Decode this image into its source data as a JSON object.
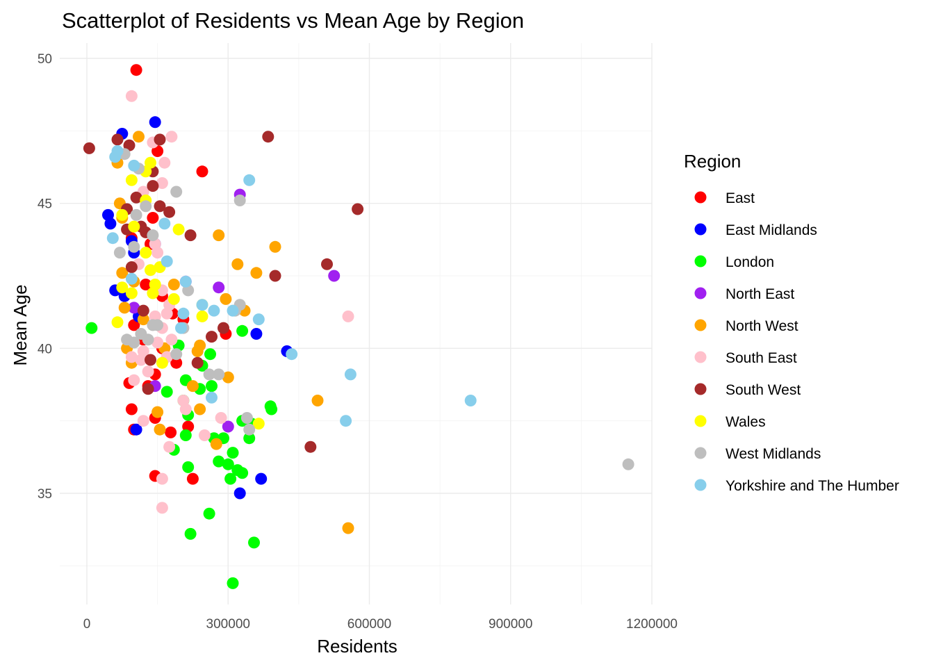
{
  "chart_data": {
    "type": "scatter",
    "title": "Scatterplot of Residents vs Mean Age by Region",
    "xlabel": "Residents",
    "ylabel": "Mean Age",
    "xlim": [
      -20000,
      1200000
    ],
    "ylim": [
      31.4,
      50.6
    ],
    "x_ticks": [
      0,
      300000,
      600000,
      900000,
      1200000
    ],
    "x_tick_labels": [
      "0",
      "300000",
      "600000",
      "900000",
      "1200000"
    ],
    "y_ticks": [
      35,
      40,
      45,
      50
    ],
    "y_tick_labels": [
      "35",
      "40",
      "45",
      "50"
    ],
    "grid": true,
    "legend_title": "Region",
    "legend_position": "right",
    "series": [
      {
        "name": "East",
        "color": "#FF0000",
        "points": [
          [
            105000,
            49.6
          ],
          [
            245000,
            46.1
          ],
          [
            150000,
            46.8
          ],
          [
            140000,
            44.5
          ],
          [
            135000,
            43.6
          ],
          [
            95000,
            43.8
          ],
          [
            125000,
            42.2
          ],
          [
            160000,
            41.8
          ],
          [
            182000,
            41.2
          ],
          [
            100000,
            40.8
          ],
          [
            120000,
            40.3
          ],
          [
            160000,
            40.0
          ],
          [
            190000,
            39.5
          ],
          [
            145000,
            39.1
          ],
          [
            130000,
            38.7
          ],
          [
            90000,
            38.8
          ],
          [
            95000,
            37.9
          ],
          [
            100000,
            37.2
          ],
          [
            145000,
            37.6
          ],
          [
            178000,
            37.1
          ],
          [
            215000,
            37.3
          ],
          [
            145000,
            35.6
          ],
          [
            225000,
            35.5
          ],
          [
            295000,
            40.5
          ],
          [
            205000,
            41.0
          ],
          [
            155000,
            42.0
          ]
        ]
      },
      {
        "name": "East Midlands",
        "color": "#0000FF",
        "points": [
          [
            145000,
            47.8
          ],
          [
            75000,
            47.4
          ],
          [
            45000,
            44.6
          ],
          [
            50000,
            44.3
          ],
          [
            95000,
            43.7
          ],
          [
            145000,
            43.6
          ],
          [
            100000,
            43.3
          ],
          [
            60000,
            42.0
          ],
          [
            80000,
            41.8
          ],
          [
            110000,
            41.1
          ],
          [
            425000,
            39.9
          ],
          [
            360000,
            40.5
          ],
          [
            105000,
            37.2
          ],
          [
            370000,
            35.5
          ],
          [
            325000,
            35.0
          ]
        ]
      },
      {
        "name": "London",
        "color": "#00FF00",
        "points": [
          [
            10000,
            40.7
          ],
          [
            195000,
            40.1
          ],
          [
            245000,
            39.4
          ],
          [
            262000,
            39.8
          ],
          [
            210000,
            38.9
          ],
          [
            240000,
            38.6
          ],
          [
            265000,
            38.7
          ],
          [
            170000,
            38.5
          ],
          [
            205000,
            38.2
          ],
          [
            215000,
            37.7
          ],
          [
            330000,
            37.5
          ],
          [
            350000,
            37.4
          ],
          [
            390000,
            38.0
          ],
          [
            392000,
            37.9
          ],
          [
            210000,
            37.0
          ],
          [
            270000,
            36.9
          ],
          [
            290000,
            36.9
          ],
          [
            345000,
            36.9
          ],
          [
            185000,
            36.5
          ],
          [
            215000,
            35.9
          ],
          [
            280000,
            36.1
          ],
          [
            300000,
            36.0
          ],
          [
            310000,
            36.4
          ],
          [
            320000,
            35.8
          ],
          [
            330000,
            35.7
          ],
          [
            305000,
            35.5
          ],
          [
            260000,
            34.3
          ],
          [
            220000,
            33.6
          ],
          [
            355000,
            33.3
          ],
          [
            310000,
            31.9
          ],
          [
            330000,
            40.6
          ]
        ]
      },
      {
        "name": "North East",
        "color": "#A020F0",
        "points": [
          [
            325000,
            45.3
          ],
          [
            525000,
            42.5
          ],
          [
            210000,
            42.3
          ],
          [
            280000,
            42.1
          ],
          [
            100000,
            41.4
          ],
          [
            145000,
            38.7
          ],
          [
            300000,
            37.3
          ]
        ]
      },
      {
        "name": "North West",
        "color": "#FFA500",
        "points": [
          [
            65000,
            46.4
          ],
          [
            110000,
            47.3
          ],
          [
            70000,
            45.0
          ],
          [
            75000,
            44.5
          ],
          [
            280000,
            43.9
          ],
          [
            400000,
            43.5
          ],
          [
            320000,
            42.9
          ],
          [
            360000,
            42.6
          ],
          [
            75000,
            42.6
          ],
          [
            100000,
            42.3
          ],
          [
            185000,
            42.2
          ],
          [
            295000,
            41.7
          ],
          [
            335000,
            41.3
          ],
          [
            80000,
            41.4
          ],
          [
            120000,
            41.0
          ],
          [
            165000,
            40.0
          ],
          [
            85000,
            40.0
          ],
          [
            240000,
            40.1
          ],
          [
            95000,
            39.5
          ],
          [
            235000,
            39.9
          ],
          [
            300000,
            39.0
          ],
          [
            225000,
            38.7
          ],
          [
            240000,
            37.9
          ],
          [
            490000,
            38.2
          ],
          [
            150000,
            37.8
          ],
          [
            155000,
            37.2
          ],
          [
            275000,
            36.7
          ],
          [
            555000,
            33.8
          ]
        ]
      },
      {
        "name": "South East",
        "color": "#FFC0CB",
        "points": [
          [
            95000,
            48.7
          ],
          [
            180000,
            47.3
          ],
          [
            140000,
            47.1
          ],
          [
            165000,
            46.4
          ],
          [
            160000,
            45.7
          ],
          [
            120000,
            45.4
          ],
          [
            145000,
            43.6
          ],
          [
            150000,
            43.3
          ],
          [
            110000,
            42.9
          ],
          [
            160000,
            42.0
          ],
          [
            175000,
            41.5
          ],
          [
            170000,
            41.2
          ],
          [
            145000,
            41.1
          ],
          [
            160000,
            40.7
          ],
          [
            180000,
            40.3
          ],
          [
            150000,
            40.2
          ],
          [
            120000,
            39.9
          ],
          [
            95000,
            39.7
          ],
          [
            115000,
            39.6
          ],
          [
            170000,
            39.7
          ],
          [
            130000,
            39.2
          ],
          [
            100000,
            38.9
          ],
          [
            205000,
            38.2
          ],
          [
            210000,
            37.9
          ],
          [
            285000,
            37.6
          ],
          [
            120000,
            37.5
          ],
          [
            250000,
            37.0
          ],
          [
            175000,
            36.6
          ],
          [
            160000,
            35.5
          ],
          [
            160000,
            34.5
          ],
          [
            555000,
            41.1
          ]
        ]
      },
      {
        "name": "South West",
        "color": "#A52A2A",
        "points": [
          [
            5000,
            46.9
          ],
          [
            65000,
            47.2
          ],
          [
            90000,
            47.0
          ],
          [
            155000,
            47.2
          ],
          [
            385000,
            47.3
          ],
          [
            140000,
            46.1
          ],
          [
            140000,
            45.6
          ],
          [
            155000,
            44.9
          ],
          [
            175000,
            44.7
          ],
          [
            85000,
            44.8
          ],
          [
            105000,
            45.2
          ],
          [
            575000,
            44.8
          ],
          [
            115000,
            44.2
          ],
          [
            220000,
            43.9
          ],
          [
            85000,
            44.1
          ],
          [
            510000,
            42.9
          ],
          [
            400000,
            42.5
          ],
          [
            95000,
            42.8
          ],
          [
            135000,
            39.6
          ],
          [
            120000,
            41.3
          ],
          [
            290000,
            40.7
          ],
          [
            265000,
            40.4
          ],
          [
            235000,
            39.5
          ],
          [
            130000,
            38.6
          ],
          [
            475000,
            36.6
          ],
          [
            125000,
            44.0
          ]
        ]
      },
      {
        "name": "Wales",
        "color": "#FFFF00",
        "points": [
          [
            125000,
            46.1
          ],
          [
            135000,
            46.4
          ],
          [
            95000,
            45.8
          ],
          [
            125000,
            45.1
          ],
          [
            75000,
            44.6
          ],
          [
            100000,
            44.2
          ],
          [
            195000,
            44.1
          ],
          [
            125000,
            43.3
          ],
          [
            135000,
            42.7
          ],
          [
            155000,
            42.8
          ],
          [
            145000,
            42.2
          ],
          [
            75000,
            42.1
          ],
          [
            95000,
            41.9
          ],
          [
            140000,
            41.9
          ],
          [
            185000,
            41.7
          ],
          [
            245000,
            41.5
          ],
          [
            245000,
            41.1
          ],
          [
            65000,
            40.9
          ],
          [
            160000,
            39.5
          ],
          [
            365000,
            37.4
          ]
        ]
      },
      {
        "name": "West Midlands",
        "color": "#BEBEBE",
        "points": [
          [
            80000,
            46.7
          ],
          [
            110000,
            46.2
          ],
          [
            105000,
            44.6
          ],
          [
            125000,
            44.9
          ],
          [
            190000,
            45.4
          ],
          [
            325000,
            45.1
          ],
          [
            140000,
            43.9
          ],
          [
            100000,
            43.5
          ],
          [
            70000,
            43.3
          ],
          [
            215000,
            42.0
          ],
          [
            325000,
            41.5
          ],
          [
            315000,
            41.3
          ],
          [
            140000,
            40.8
          ],
          [
            150000,
            40.8
          ],
          [
            130000,
            40.3
          ],
          [
            115000,
            40.5
          ],
          [
            190000,
            39.8
          ],
          [
            205000,
            40.7
          ],
          [
            100000,
            40.2
          ],
          [
            85000,
            40.3
          ],
          [
            260000,
            39.1
          ],
          [
            280000,
            39.1
          ],
          [
            340000,
            37.6
          ],
          [
            345000,
            37.2
          ],
          [
            1150000,
            36.0
          ]
        ]
      },
      {
        "name": "Yorkshire and The Humber",
        "color": "#87CEEB",
        "points": [
          [
            65000,
            46.8
          ],
          [
            60000,
            46.6
          ],
          [
            100000,
            46.3
          ],
          [
            345000,
            45.8
          ],
          [
            165000,
            44.3
          ],
          [
            55000,
            43.8
          ],
          [
            170000,
            43.0
          ],
          [
            210000,
            42.3
          ],
          [
            95000,
            42.4
          ],
          [
            245000,
            41.5
          ],
          [
            270000,
            41.3
          ],
          [
            310000,
            41.3
          ],
          [
            365000,
            41.0
          ],
          [
            205000,
            41.2
          ],
          [
            200000,
            40.7
          ],
          [
            265000,
            38.3
          ],
          [
            435000,
            39.8
          ],
          [
            560000,
            39.1
          ],
          [
            550000,
            37.5
          ],
          [
            815000,
            38.2
          ]
        ]
      }
    ]
  }
}
